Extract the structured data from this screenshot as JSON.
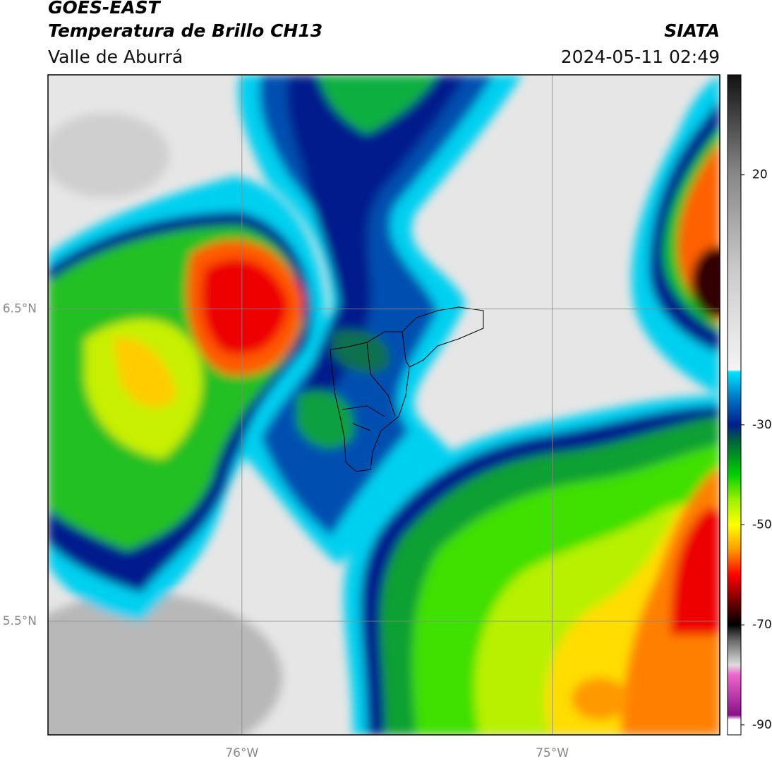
{
  "header": {
    "title": "GOES-EAST",
    "subtitle": "Temperatura de Brillo CH13",
    "region": "Valle de Aburrá",
    "source": "SIATA",
    "datetime": "2024-05-11 02:49"
  },
  "map": {
    "xlim": [
      -76.625,
      -74.46
    ],
    "ylim": [
      5.136,
      7.25
    ],
    "xticks": [
      {
        "value": -76,
        "label": "76°W"
      },
      {
        "value": -75,
        "label": "75°W"
      }
    ],
    "yticks": [
      {
        "value": 6.5,
        "label": "6.5°N"
      },
      {
        "value": 5.5,
        "label": "5.5°N"
      }
    ]
  },
  "colorbar": {
    "lim": [
      -92,
      40
    ],
    "ticks": [
      20,
      -30,
      -50,
      -70,
      -90
    ]
  }
}
